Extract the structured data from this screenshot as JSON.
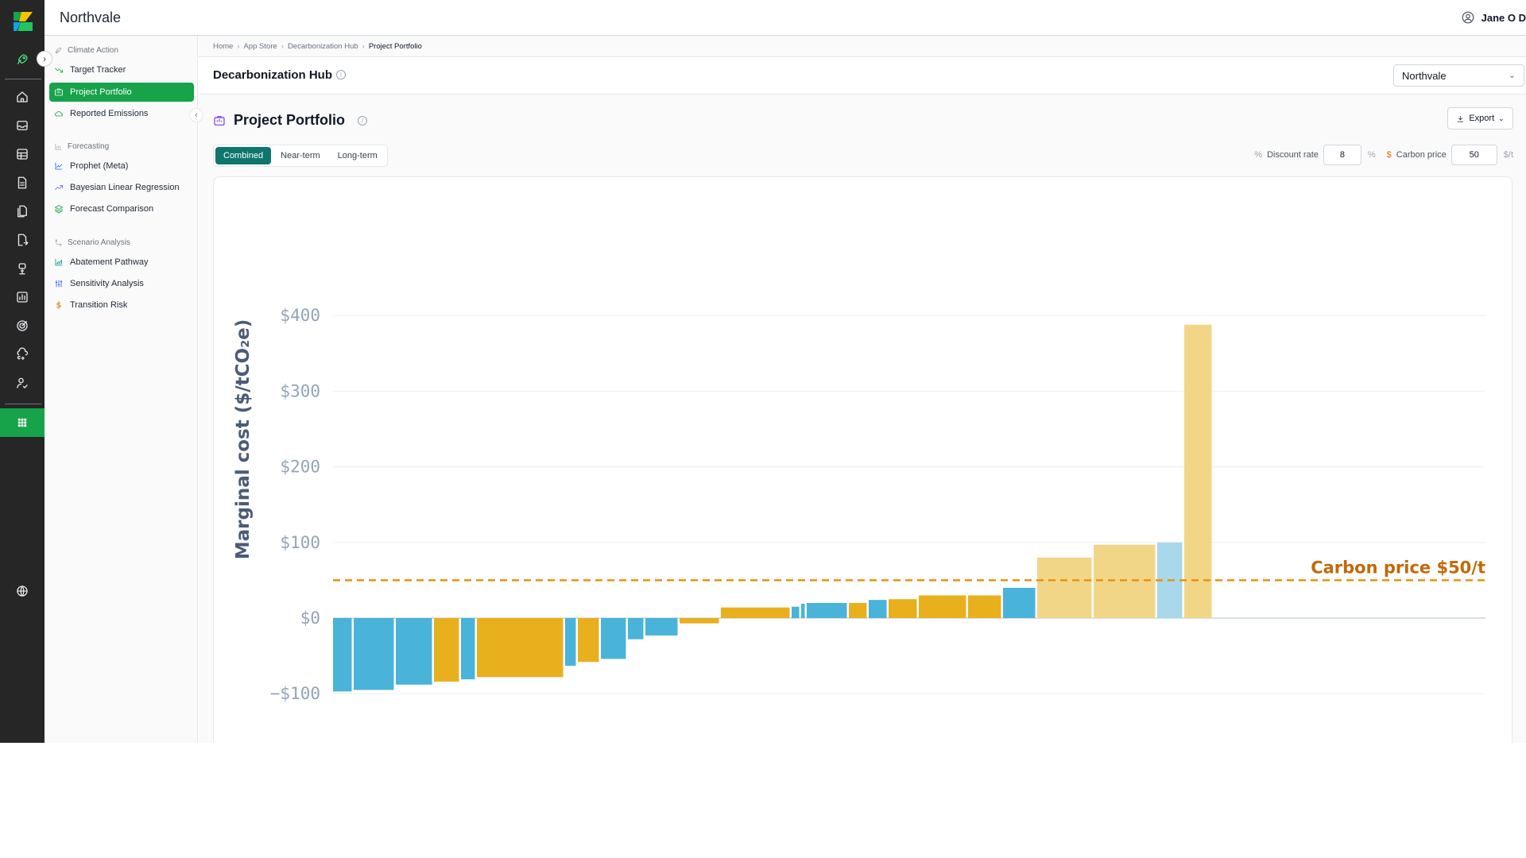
{
  "app": {
    "brand": "Northvale",
    "user_name": "Jane O D"
  },
  "rail": {
    "icons": [
      "rocket-icon",
      "home-icon",
      "inbox-icon",
      "table-icon",
      "document-icon",
      "files-icon",
      "file-export-icon",
      "plant-icon",
      "bar-chart-icon",
      "target-icon",
      "co2-cloud-icon",
      "user-check-icon",
      "apps-grid-icon",
      "globe-icon"
    ]
  },
  "sidebar": {
    "sections": [
      {
        "title": "Climate Action",
        "items": [
          {
            "label": "Target Tracker",
            "icon": "trend-icon",
            "color": "#16a34a"
          },
          {
            "label": "Project Portfolio",
            "icon": "portfolio-icon",
            "color": "#16a34a",
            "active": true
          },
          {
            "label": "Reported Emissions",
            "icon": "cloud-icon",
            "color": "#16a34a"
          }
        ]
      },
      {
        "title": "Forecasting",
        "items": [
          {
            "label": "Prophet (Meta)",
            "icon": "line-chart-icon",
            "color": "#2563eb"
          },
          {
            "label": "Bayesian Linear Regression",
            "icon": "trend-up-icon",
            "color": "#6366f1"
          },
          {
            "label": "Forecast Comparison",
            "icon": "layers-icon",
            "color": "#16a34a"
          }
        ]
      },
      {
        "title": "Scenario Analysis",
        "items": [
          {
            "label": "Abatement Pathway",
            "icon": "area-chart-icon",
            "color": "#0d9488"
          },
          {
            "label": "Sensitivity Analysis",
            "icon": "sliders-icon",
            "color": "#2563eb"
          },
          {
            "label": "Transition Risk",
            "icon": "dollar-icon",
            "color": "#d97706"
          }
        ]
      }
    ]
  },
  "breadcrumb": [
    "Home",
    "App Store",
    "Decarbonization Hub",
    "Project Portfolio"
  ],
  "hub": {
    "title": "Decarbonization Hub",
    "selector_value": "Northvale"
  },
  "page": {
    "title": "Project Portfolio",
    "export_label": "Export",
    "tabs": [
      "Combined",
      "Near-term",
      "Long-term"
    ],
    "active_tab": "Combined",
    "discount_rate_label": "Discount rate",
    "discount_rate_value": "8",
    "discount_rate_unit": "%",
    "carbon_price_label": "Carbon price",
    "carbon_price_value": "50",
    "carbon_price_unit": "$/t"
  },
  "chart_data": {
    "type": "bar",
    "subtype": "marginal-abatement-cost-curve",
    "ylabel": "Marginal cost ($/tCO₂e)",
    "ylim": [
      -130,
      420
    ],
    "y_ticks": [
      400,
      300,
      200,
      100,
      0,
      -100
    ],
    "y_tick_labels": [
      "$400",
      "$300",
      "$200",
      "$100",
      "$0",
      "−$100"
    ],
    "grid": true,
    "reference_line": {
      "value": 50,
      "label": "Carbon price $50/t",
      "color": "#e8930c"
    },
    "category_colors": {
      "blue": "#4ab3d9",
      "gold": "#e9b01d"
    },
    "bars": [
      {
        "width": 26,
        "cost": -97,
        "color": "#4ab3d9"
      },
      {
        "width": 53,
        "cost": -95,
        "color": "#4ab3d9"
      },
      {
        "width": 48,
        "cost": -88,
        "color": "#4ab3d9"
      },
      {
        "width": 34,
        "cost": -84,
        "color": "#e9b01d"
      },
      {
        "width": 20,
        "cost": -81,
        "color": "#4ab3d9"
      },
      {
        "width": 111,
        "cost": -78,
        "color": "#e9b01d"
      },
      {
        "width": 16,
        "cost": -63,
        "color": "#4ab3d9"
      },
      {
        "width": 29,
        "cost": -58,
        "color": "#e9b01d"
      },
      {
        "width": 34,
        "cost": -54,
        "color": "#4ab3d9"
      },
      {
        "width": 22,
        "cost": -28,
        "color": "#4ab3d9"
      },
      {
        "width": 43,
        "cost": -23,
        "color": "#4ab3d9"
      },
      {
        "width": 52,
        "cost": -7,
        "color": "#e9b01d"
      },
      {
        "width": 89,
        "cost": 14,
        "color": "#e9b01d"
      },
      {
        "width": 12,
        "cost": 15,
        "color": "#4ab3d9"
      },
      {
        "width": 7,
        "cost": 19,
        "color": "#4ab3d9"
      },
      {
        "width": 53,
        "cost": 20,
        "color": "#4ab3d9"
      },
      {
        "width": 25,
        "cost": 20,
        "color": "#e9b01d"
      },
      {
        "width": 25,
        "cost": 24,
        "color": "#4ab3d9"
      },
      {
        "width": 38,
        "cost": 25,
        "color": "#e9b01d"
      },
      {
        "width": 62,
        "cost": 30,
        "color": "#e9b01d"
      },
      {
        "width": 44,
        "cost": 30,
        "color": "#e9b01d"
      },
      {
        "width": 43,
        "cost": 40,
        "color": "#4ab3d9"
      },
      {
        "width": 71,
        "cost": 80,
        "color": "#f2d687"
      },
      {
        "width": 80,
        "cost": 97,
        "color": "#f2d687"
      },
      {
        "width": 34,
        "cost": 100,
        "color": "#a8d8ea"
      },
      {
        "width": 37,
        "cost": 388,
        "color": "#f2d687"
      }
    ]
  }
}
